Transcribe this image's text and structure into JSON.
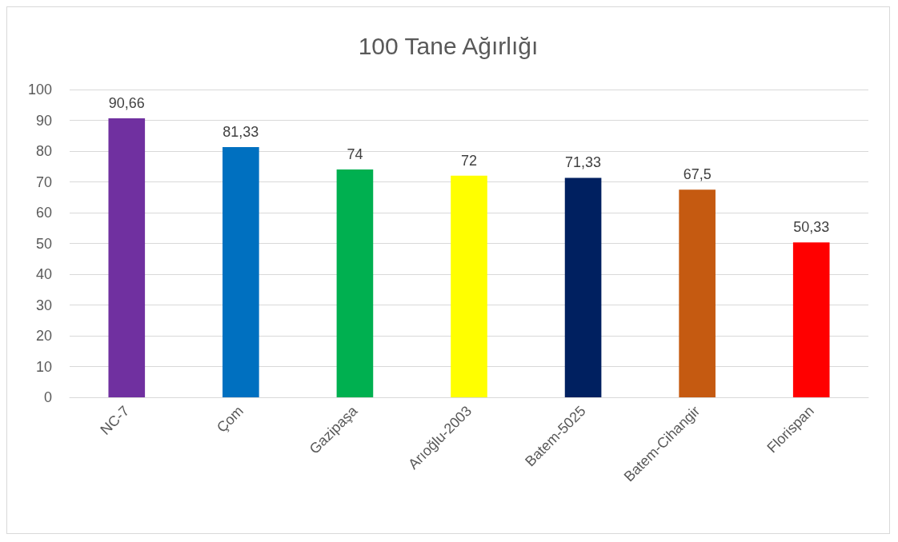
{
  "chart_data": {
    "type": "bar",
    "title": "100 Tane Ağırlığı",
    "categories": [
      "NC-7",
      "Çom",
      "Gazipaşa",
      "Arıoğlu-2003",
      "Batem-5025",
      "Batem-Cihangir",
      "Florispan"
    ],
    "values": [
      90.66,
      81.33,
      74,
      72,
      71.33,
      67.5,
      50.33
    ],
    "colors": [
      "#7030a0",
      "#0070c0",
      "#00b050",
      "#ffff00",
      "#002060",
      "#c55a11",
      "#ff0000"
    ],
    "value_labels": [
      "90,66",
      "81,33",
      "74",
      "72",
      "71,33",
      "67,5",
      "50,33"
    ],
    "ylim": [
      0,
      100
    ],
    "yticks": [
      0,
      10,
      20,
      30,
      40,
      50,
      60,
      70,
      80,
      90,
      100
    ],
    "grid": "y"
  }
}
